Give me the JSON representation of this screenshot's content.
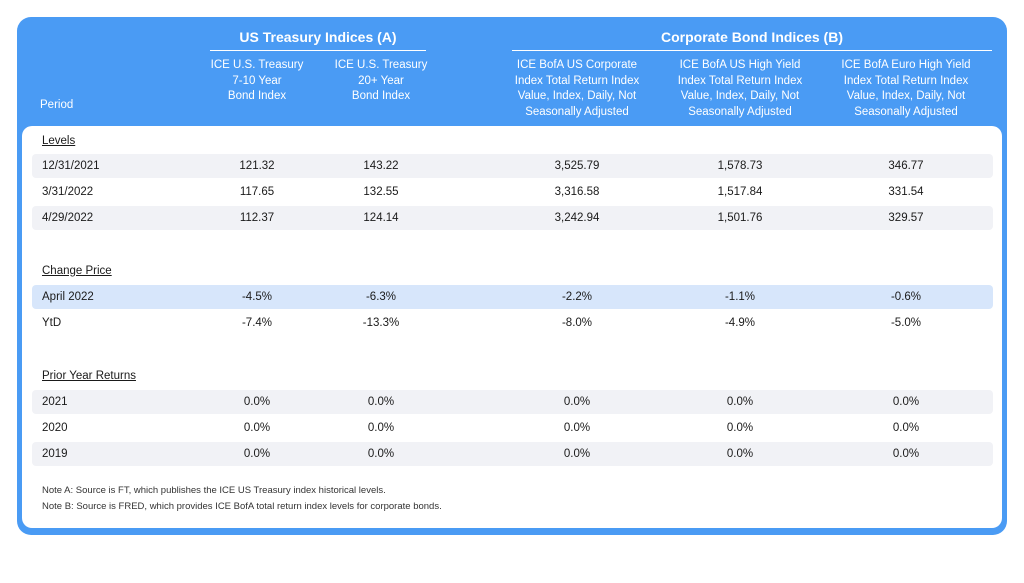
{
  "header": {
    "group_a": "US Treasury Indices (A)",
    "group_b": "Corporate Bond Indices (B)",
    "period_label": "Period",
    "columns": [
      [
        "ICE U.S. Treasury",
        "7-10 Year",
        "Bond Index"
      ],
      [
        "ICE U.S. Treasury",
        "20+ Year",
        "Bond Index"
      ],
      [
        "ICE BofA US Corporate",
        "Index Total Return Index",
        "Value, Index, Daily, Not",
        "Seasonally Adjusted"
      ],
      [
        "ICE BofA US High Yield",
        "Index Total Return Index",
        "Value, Index, Daily, Not",
        "Seasonally Adjusted"
      ],
      [
        "ICE BofA Euro High Yield",
        "Index Total Return Index",
        "Value, Index, Daily, Not",
        "Seasonally Adjusted"
      ]
    ]
  },
  "sections": [
    {
      "title": "Levels",
      "rows": [
        {
          "label": "12/31/2021",
          "values": [
            "121.32",
            "143.22",
            "3,525.79",
            "1,578.73",
            "346.77"
          ]
        },
        {
          "label": "3/31/2022",
          "values": [
            "117.65",
            "132.55",
            "3,316.58",
            "1,517.84",
            "331.54"
          ]
        },
        {
          "label": "4/29/2022",
          "values": [
            "112.37",
            "124.14",
            "3,242.94",
            "1,501.76",
            "329.57"
          ]
        }
      ]
    },
    {
      "title": "Change Price",
      "rows": [
        {
          "label": "April 2022",
          "values": [
            "-4.5%",
            "-6.3%",
            "-2.2%",
            "-1.1%",
            "-0.6%"
          ]
        },
        {
          "label": "YtD",
          "values": [
            "-7.4%",
            "-13.3%",
            "-8.0%",
            "-4.9%",
            "-5.0%"
          ]
        }
      ]
    },
    {
      "title": "Prior Year Returns",
      "rows": [
        {
          "label": "2021",
          "values": [
            "0.0%",
            "0.0%",
            "0.0%",
            "0.0%",
            "0.0%"
          ]
        },
        {
          "label": "2020",
          "values": [
            "0.0%",
            "0.0%",
            "0.0%",
            "0.0%",
            "0.0%"
          ]
        },
        {
          "label": "2019",
          "values": [
            "0.0%",
            "0.0%",
            "0.0%",
            "0.0%",
            "0.0%"
          ]
        }
      ]
    }
  ],
  "notes": [
    "Note A:  Source is FT, which publishes the ICE US Treasury index historical levels.",
    "Note B: Source is FRED, which provides ICE BofA total return index levels for corporate bonds."
  ],
  "colors": {
    "frame": "#4a9bf4",
    "row_shade": "#f1f2f6",
    "row_highlight": "#d7e6fb"
  }
}
